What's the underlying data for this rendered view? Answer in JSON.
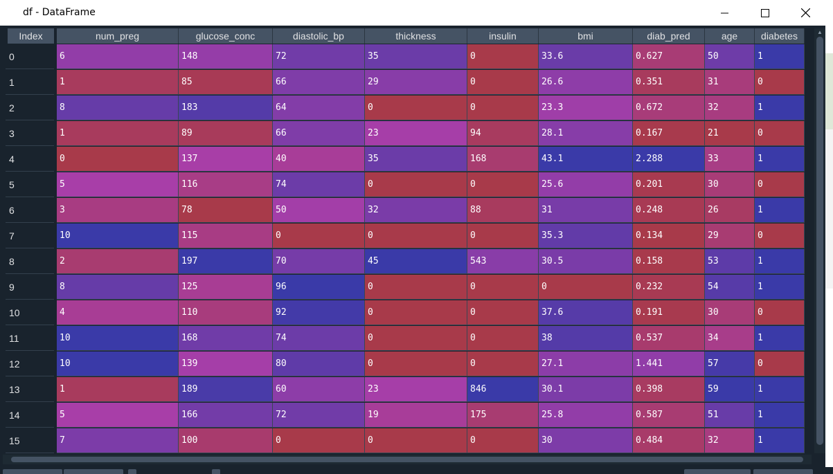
{
  "window": {
    "title": "df - DataFrame"
  },
  "index_header": "Index",
  "columns": [
    "num_preg",
    "glucose_conc",
    "diastolic_bp",
    "thickness",
    "insulin",
    "bmi",
    "diab_pred",
    "age",
    "diabetes"
  ],
  "rows": [
    {
      "index": "0",
      "values": [
        "6",
        "148",
        "72",
        "35",
        "0",
        "33.6",
        "0.627",
        "50",
        "1"
      ]
    },
    {
      "index": "1",
      "values": [
        "1",
        "85",
        "66",
        "29",
        "0",
        "26.6",
        "0.351",
        "31",
        "0"
      ]
    },
    {
      "index": "2",
      "values": [
        "8",
        "183",
        "64",
        "0",
        "0",
        "23.3",
        "0.672",
        "32",
        "1"
      ]
    },
    {
      "index": "3",
      "values": [
        "1",
        "89",
        "66",
        "23",
        "94",
        "28.1",
        "0.167",
        "21",
        "0"
      ]
    },
    {
      "index": "4",
      "values": [
        "0",
        "137",
        "40",
        "35",
        "168",
        "43.1",
        "2.288",
        "33",
        "1"
      ]
    },
    {
      "index": "5",
      "values": [
        "5",
        "116",
        "74",
        "0",
        "0",
        "25.6",
        "0.201",
        "30",
        "0"
      ]
    },
    {
      "index": "6",
      "values": [
        "3",
        "78",
        "50",
        "32",
        "88",
        "31",
        "0.248",
        "26",
        "1"
      ]
    },
    {
      "index": "7",
      "values": [
        "10",
        "115",
        "0",
        "0",
        "0",
        "35.3",
        "0.134",
        "29",
        "0"
      ]
    },
    {
      "index": "8",
      "values": [
        "2",
        "197",
        "70",
        "45",
        "543",
        "30.5",
        "0.158",
        "53",
        "1"
      ]
    },
    {
      "index": "9",
      "values": [
        "8",
        "125",
        "96",
        "0",
        "0",
        "0",
        "0.232",
        "54",
        "1"
      ]
    },
    {
      "index": "10",
      "values": [
        "4",
        "110",
        "92",
        "0",
        "0",
        "37.6",
        "0.191",
        "30",
        "0"
      ]
    },
    {
      "index": "11",
      "values": [
        "10",
        "168",
        "74",
        "0",
        "0",
        "38",
        "0.537",
        "34",
        "1"
      ]
    },
    {
      "index": "12",
      "values": [
        "10",
        "139",
        "80",
        "0",
        "0",
        "27.1",
        "1.441",
        "57",
        "0"
      ]
    },
    {
      "index": "13",
      "values": [
        "1",
        "189",
        "60",
        "23",
        "846",
        "30.1",
        "0.398",
        "59",
        "1"
      ]
    },
    {
      "index": "14",
      "values": [
        "5",
        "166",
        "72",
        "19",
        "175",
        "25.8",
        "0.587",
        "51",
        "1"
      ]
    },
    {
      "index": "15",
      "values": [
        "7",
        "100",
        "0",
        "0",
        "0",
        "30",
        "0.484",
        "32",
        "1"
      ]
    }
  ],
  "colors": {
    "low": "#a83a4a",
    "mid": "#a83ea8",
    "high": "#3a3aa8"
  },
  "icons": {
    "minimize": "minimize-icon",
    "maximize": "maximize-icon",
    "close": "close-icon"
  }
}
